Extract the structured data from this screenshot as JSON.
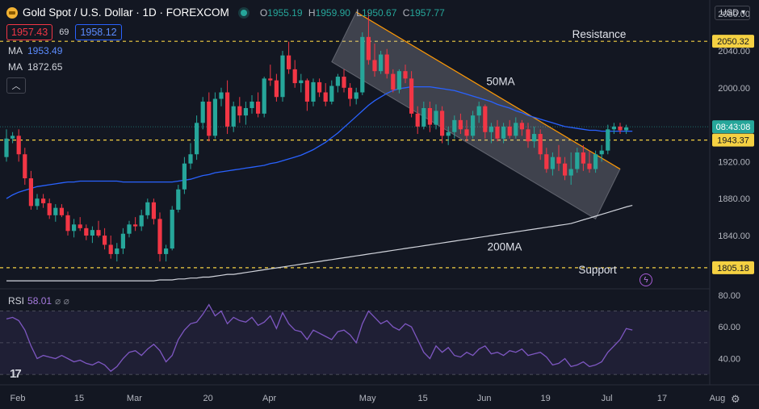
{
  "header": {
    "title": "Gold Spot / U.S. Dollar · 1D · FOREXCOM",
    "ohlc": [
      {
        "k": "O",
        "v": "1955.19"
      },
      {
        "k": "H",
        "v": "1959.90"
      },
      {
        "k": "L",
        "v": "1950.67"
      },
      {
        "k": "C",
        "v": "1957.77"
      }
    ],
    "bid": "1957.43",
    "spread": "69",
    "ask": "1958.12",
    "ma1_label": "MA",
    "ma1_value": "1953.49",
    "ma2_label": "MA",
    "ma2_value": "1872.65",
    "currency": "USD"
  },
  "rsi_panel": {
    "label": "RSI",
    "value": "58.01",
    "icons": "⌀ ⌀"
  },
  "colors": {
    "up": "#26a69a",
    "down": "#f23645",
    "ma50": "#2962ff",
    "ma200": "#d1d4dc",
    "rsi": "#7e57c2",
    "level": "#f5d142",
    "trend": "#ff9800"
  },
  "chart_data": [
    {
      "type": "candlestick",
      "title": "Gold Spot / U.S. Dollar · 1D · FOREXCOM",
      "y_ticks": [
        "2080.00",
        "2040.00",
        "2000.00",
        "1920.00",
        "1880.00",
        "1840.00"
      ],
      "ylim": [
        1785,
        2095
      ],
      "x_ticks": [
        "Feb",
        "15",
        "Mar",
        "20",
        "Apr",
        "May",
        "15",
        "Jun",
        "19",
        "Jul",
        "17",
        "Aug"
      ],
      "candles": [
        [
          1925,
          1955,
          1920,
          1945
        ],
        [
          1945,
          1952,
          1940,
          1948
        ],
        [
          1948,
          1955,
          1920,
          1928
        ],
        [
          1928,
          1935,
          1895,
          1902
        ],
        [
          1902,
          1910,
          1868,
          1872
        ],
        [
          1872,
          1885,
          1868,
          1880
        ],
        [
          1880,
          1885,
          1870,
          1875
        ],
        [
          1875,
          1880,
          1858,
          1862
        ],
        [
          1862,
          1874,
          1855,
          1870
        ],
        [
          1870,
          1874,
          1860,
          1862
        ],
        [
          1862,
          1866,
          1840,
          1845
        ],
        [
          1845,
          1858,
          1838,
          1852
        ],
        [
          1852,
          1860,
          1845,
          1848
        ],
        [
          1848,
          1852,
          1835,
          1840
        ],
        [
          1840,
          1850,
          1832,
          1846
        ],
        [
          1846,
          1856,
          1838,
          1840
        ],
        [
          1840,
          1848,
          1825,
          1830
        ],
        [
          1830,
          1840,
          1815,
          1820
        ],
        [
          1820,
          1832,
          1812,
          1826
        ],
        [
          1826,
          1848,
          1820,
          1842
        ],
        [
          1842,
          1856,
          1838,
          1852
        ],
        [
          1852,
          1860,
          1845,
          1850
        ],
        [
          1850,
          1868,
          1845,
          1862
        ],
        [
          1862,
          1880,
          1858,
          1876
        ],
        [
          1876,
          1880,
          1852,
          1858
        ],
        [
          1858,
          1865,
          1812,
          1820
        ],
        [
          1820,
          1830,
          1812,
          1826
        ],
        [
          1826,
          1872,
          1824,
          1868
        ],
        [
          1868,
          1895,
          1865,
          1890
        ],
        [
          1890,
          1925,
          1885,
          1918
        ],
        [
          1918,
          1940,
          1912,
          1928
        ],
        [
          1928,
          1970,
          1922,
          1962
        ],
        [
          1962,
          1990,
          1955,
          1985
        ],
        [
          1985,
          1995,
          1942,
          1948
        ],
        [
          1948,
          1995,
          1945,
          1988
        ],
        [
          1988,
          2000,
          1980,
          1995
        ],
        [
          1995,
          2008,
          1950,
          1958
        ],
        [
          1958,
          1985,
          1952,
          1980
        ],
        [
          1980,
          1990,
          1962,
          1970
        ],
        [
          1970,
          1985,
          1960,
          1978
        ],
        [
          1978,
          1992,
          1972,
          1985
        ],
        [
          1985,
          1995,
          1968,
          1972
        ],
        [
          1972,
          2012,
          1968,
          2010
        ],
        [
          2010,
          2025,
          2002,
          2008
        ],
        [
          2008,
          2015,
          1985,
          1990
        ],
        [
          1990,
          2040,
          1985,
          2035
        ],
        [
          2035,
          2050,
          2015,
          2020
        ],
        [
          2020,
          2030,
          2000,
          2005
        ],
        [
          2005,
          2015,
          1995,
          2008
        ],
        [
          2008,
          2010,
          1975,
          1985
        ],
        [
          1985,
          2010,
          1980,
          2006
        ],
        [
          2006,
          2010,
          1990,
          1995
        ],
        [
          1995,
          2005,
          1980,
          1985
        ],
        [
          1985,
          2008,
          1982,
          2002
        ],
        [
          2002,
          2015,
          1995,
          2012
        ],
        [
          2012,
          2020,
          1995,
          2000
        ],
        [
          2000,
          2005,
          1980,
          1988
        ],
        [
          1988,
          2000,
          1982,
          1995
        ],
        [
          1995,
          2060,
          1992,
          2055
        ],
        [
          2055,
          2082,
          2025,
          2030
        ],
        [
          2030,
          2048,
          2012,
          2018
        ],
        [
          2018,
          2040,
          2015,
          2036
        ],
        [
          2036,
          2042,
          2010,
          2015
        ],
        [
          2015,
          2020,
          1995,
          1998
        ],
        [
          1998,
          2020,
          1994,
          2018
        ],
        [
          2018,
          2025,
          2005,
          2010
        ],
        [
          2010,
          2018,
          1968,
          1972
        ],
        [
          1972,
          1980,
          1950,
          1958
        ],
        [
          1958,
          1985,
          1955,
          1978
        ],
        [
          1978,
          1985,
          1952,
          1960
        ],
        [
          1960,
          1982,
          1955,
          1975
        ],
        [
          1975,
          1980,
          1940,
          1948
        ],
        [
          1948,
          1958,
          1938,
          1952
        ],
        [
          1952,
          1970,
          1945,
          1965
        ],
        [
          1965,
          1972,
          1950,
          1955
        ],
        [
          1955,
          1965,
          1942,
          1948
        ],
        [
          1948,
          1975,
          1945,
          1970
        ],
        [
          1970,
          1985,
          1962,
          1980
        ],
        [
          1980,
          1982,
          1945,
          1952
        ],
        [
          1952,
          1962,
          1940,
          1958
        ],
        [
          1958,
          1965,
          1942,
          1945
        ],
        [
          1945,
          1962,
          1940,
          1958
        ],
        [
          1958,
          1965,
          1945,
          1948
        ],
        [
          1948,
          1968,
          1945,
          1962
        ],
        [
          1962,
          1965,
          1948,
          1955
        ],
        [
          1955,
          1962,
          1935,
          1942
        ],
        [
          1942,
          1958,
          1935,
          1950
        ],
        [
          1950,
          1955,
          1922,
          1928
        ],
        [
          1928,
          1935,
          1908,
          1912
        ],
        [
          1912,
          1930,
          1905,
          1925
        ],
        [
          1925,
          1938,
          1910,
          1918
        ],
        [
          1918,
          1925,
          1900,
          1905
        ],
        [
          1905,
          1930,
          1895,
          1912
        ],
        [
          1912,
          1935,
          1908,
          1930
        ],
        [
          1930,
          1938,
          1910,
          1918
        ],
        [
          1918,
          1932,
          1908,
          1912
        ],
        [
          1912,
          1932,
          1908,
          1928
        ],
        [
          1928,
          1938,
          1920,
          1932
        ],
        [
          1932,
          1960,
          1928,
          1955
        ],
        [
          1955,
          1962,
          1950,
          1958
        ],
        [
          1958,
          1962,
          1950,
          1954
        ],
        [
          1954,
          1960,
          1950,
          1957
        ]
      ],
      "series": [
        {
          "name": "50MA",
          "values": [
            1880,
            1884,
            1887,
            1889,
            1891,
            1893,
            1894,
            1895,
            1896,
            1897,
            1898,
            1898,
            1899,
            1899,
            1899,
            1899,
            1899,
            1899,
            1899,
            1898,
            1898,
            1898,
            1898,
            1898,
            1898,
            1898,
            1898,
            1898,
            1899,
            1900,
            1901,
            1903,
            1905,
            1906,
            1908,
            1909,
            1910,
            1911,
            1912,
            1913,
            1914,
            1915,
            1916,
            1918,
            1919,
            1921,
            1923,
            1925,
            1927,
            1930,
            1933,
            1937,
            1941,
            1946,
            1951,
            1957,
            1963,
            1969,
            1975,
            1981,
            1986,
            1990,
            1994,
            1997,
            1999,
            2000,
            2001,
            2001,
            2001,
            2001,
            2000,
            1999,
            1998,
            1997,
            1995,
            1993,
            1991,
            1989,
            1987,
            1985,
            1982,
            1980,
            1978,
            1975,
            1973,
            1970,
            1968,
            1966,
            1964,
            1962,
            1960,
            1958,
            1957,
            1956,
            1955,
            1954,
            1954,
            1953,
            1953,
            1953,
            1953,
            1953,
            1953
          ]
        },
        {
          "name": "200MA",
          "values": [
            1791,
            1791,
            1791,
            1791,
            1791,
            1791,
            1791,
            1791,
            1791,
            1791,
            1791,
            1791,
            1791,
            1791,
            1791,
            1791,
            1791,
            1791,
            1791,
            1791,
            1791,
            1791,
            1791,
            1791,
            1791,
            1792,
            1792,
            1792,
            1793,
            1793,
            1794,
            1794,
            1795,
            1795,
            1796,
            1797,
            1798,
            1798,
            1799,
            1800,
            1801,
            1802,
            1803,
            1804,
            1805,
            1806,
            1807,
            1808,
            1809,
            1810,
            1811,
            1812,
            1813,
            1814,
            1815,
            1816,
            1817,
            1818,
            1819,
            1820,
            1821,
            1822,
            1823,
            1824,
            1825,
            1826,
            1827,
            1828,
            1829,
            1830,
            1831,
            1832,
            1833,
            1834,
            1835,
            1836,
            1837,
            1838,
            1839,
            1840,
            1841,
            1842,
            1843,
            1844,
            1845,
            1846,
            1847,
            1848,
            1849,
            1850,
            1851,
            1852,
            1853,
            1855,
            1857,
            1859,
            1861,
            1863,
            1865,
            1867,
            1869,
            1871,
            1872.65
          ]
        }
      ],
      "levels": [
        {
          "name": "Resistance",
          "value": 2050.32,
          "label": "2050.32"
        },
        {
          "name": "",
          "value": 1943.37,
          "label": "1943.37"
        },
        {
          "name": "Support",
          "value": 1805.18,
          "label": "1805.18"
        }
      ],
      "current_price": {
        "value": 1957.77,
        "label": "08:43:08"
      },
      "annotations": [
        "Resistance",
        "50MA",
        "200MA",
        "Support"
      ],
      "grid": false,
      "legend": "none"
    },
    {
      "type": "line",
      "title": "RSI",
      "y_ticks": [
        "80.00",
        "60.00",
        "40.00"
      ],
      "ylim": [
        25,
        82
      ],
      "band": [
        30,
        70
      ],
      "series": [
        {
          "name": "RSI",
          "values": [
            65,
            66,
            64,
            58,
            48,
            40,
            42,
            41,
            40,
            42,
            40,
            38,
            39,
            37,
            36,
            38,
            36,
            32,
            35,
            40,
            44,
            45,
            42,
            46,
            49,
            45,
            38,
            42,
            52,
            58,
            62,
            63,
            68,
            74,
            67,
            70,
            62,
            66,
            64,
            63,
            66,
            61,
            63,
            67,
            59,
            69,
            62,
            58,
            57,
            52,
            58,
            56,
            54,
            52,
            57,
            58,
            55,
            50,
            62,
            70,
            66,
            62,
            64,
            60,
            58,
            62,
            60,
            52,
            44,
            40,
            48,
            44,
            47,
            42,
            41,
            44,
            42,
            46,
            48,
            43,
            44,
            42,
            45,
            44,
            46,
            42,
            43,
            44,
            41,
            36,
            37,
            40,
            35,
            36,
            38,
            35,
            36,
            38,
            44,
            48,
            52,
            59,
            58.01
          ]
        }
      ]
    }
  ]
}
